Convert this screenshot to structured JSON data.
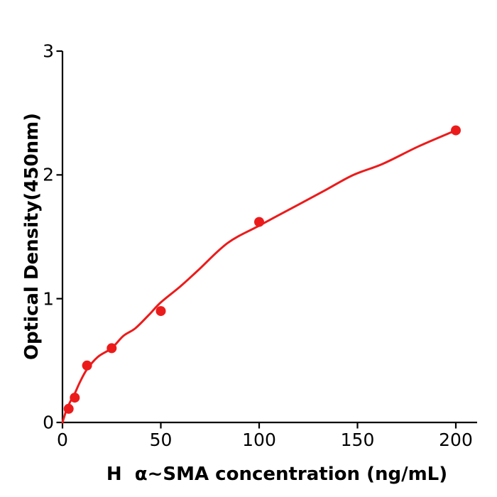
{
  "figure": {
    "background": "#ffffff"
  },
  "chart_data": {
    "type": "scatter",
    "title": "",
    "xlabel": "H  α~SMA concentration (ng/mL)",
    "ylabel": "Optical Density(450nm)",
    "x_ticks": [
      0,
      50,
      100,
      150,
      200
    ],
    "y_ticks": [
      0,
      1,
      2,
      3
    ],
    "xlim": [
      0,
      211
    ],
    "ylim": [
      0,
      3
    ],
    "grid": false,
    "legend": "none",
    "series": [
      {
        "name": "standard-points",
        "style": "scatter",
        "x": [
          3.125,
          6.25,
          12.5,
          25,
          50,
          100,
          200
        ],
        "y": [
          0.11,
          0.2,
          0.46,
          0.6,
          0.9,
          1.62,
          2.36
        ]
      },
      {
        "name": "fit-curve",
        "style": "line",
        "points": [
          [
            0,
            0
          ],
          [
            2,
            0.1
          ],
          [
            4,
            0.17
          ],
          [
            6,
            0.225
          ],
          [
            9,
            0.33
          ],
          [
            12.5,
            0.43
          ],
          [
            18,
            0.53
          ],
          [
            25,
            0.6
          ],
          [
            31,
            0.7
          ],
          [
            37,
            0.76
          ],
          [
            44,
            0.87
          ],
          [
            50,
            0.97
          ],
          [
            60,
            1.1
          ],
          [
            69,
            1.23
          ],
          [
            84,
            1.45
          ],
          [
            100,
            1.59
          ],
          [
            120,
            1.76
          ],
          [
            134,
            1.88
          ],
          [
            148,
            2.0
          ],
          [
            163,
            2.09
          ],
          [
            181,
            2.23
          ],
          [
            200,
            2.36
          ]
        ]
      }
    ],
    "colors": {
      "series": "#ec1b1b",
      "axis": "#000000",
      "text": "#000000"
    }
  }
}
